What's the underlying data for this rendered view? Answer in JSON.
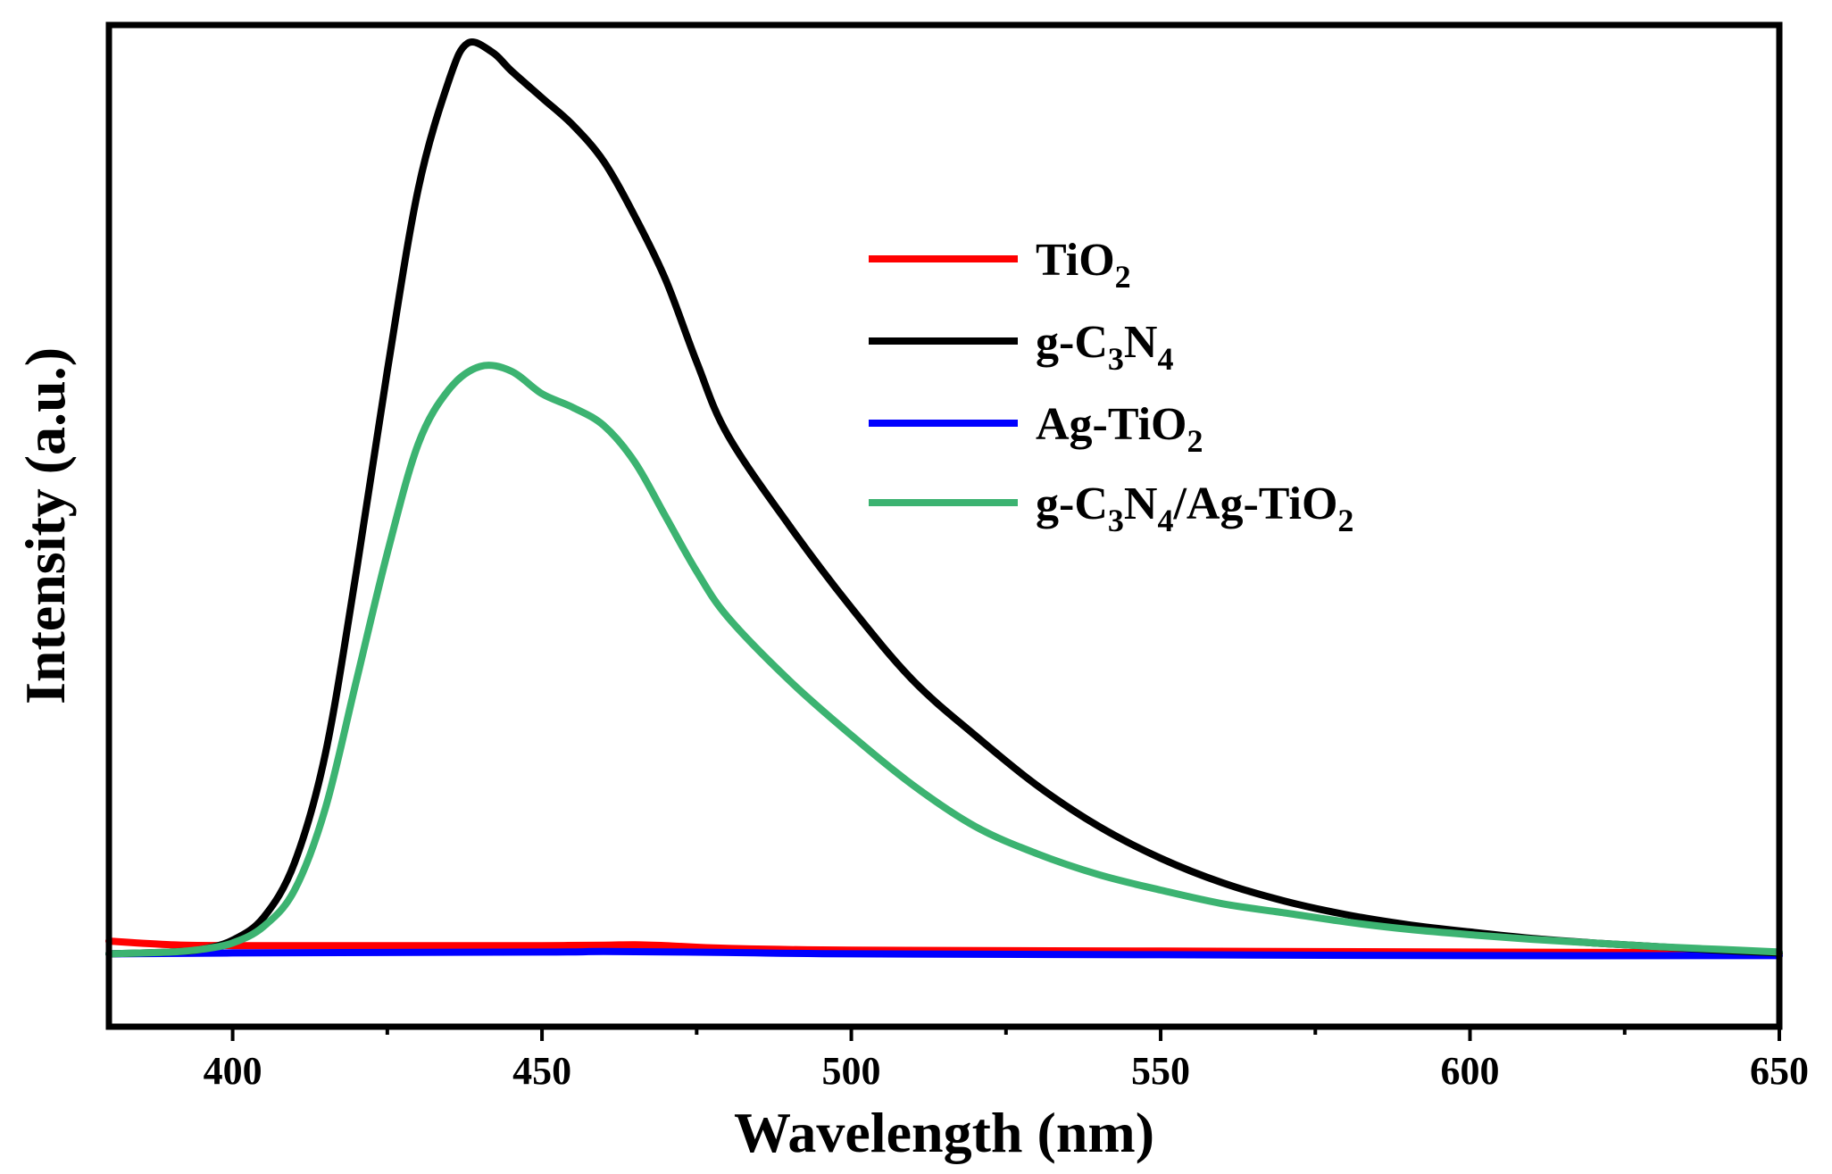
{
  "chart_data": {
    "type": "line",
    "title": "",
    "xlabel": "Wavelength (nm)",
    "ylabel": "Intensity (a.u.)",
    "xlim": [
      380,
      650
    ],
    "ylim": [
      -8,
      102
    ],
    "grid": false,
    "legend_position": "top-right (inside)",
    "x_ticks": [
      400,
      450,
      500,
      550,
      600,
      650
    ],
    "x_tick_labels": [
      "400",
      "450",
      "500",
      "550",
      "600",
      "650"
    ],
    "y_ticks_labeled": false,
    "series": [
      {
        "name": "TiO2",
        "legend": {
          "base": "TiO",
          "sub": "2"
        },
        "color": "#ff0000",
        "x": [
          380,
          390,
          400,
          420,
          440,
          450,
          460,
          465,
          470,
          480,
          500,
          550,
          600,
          650
        ],
        "y": [
          1.4,
          1.0,
          0.9,
          0.9,
          0.9,
          0.9,
          0.95,
          1.0,
          0.9,
          0.6,
          0.4,
          0.3,
          0.2,
          0.1
        ]
      },
      {
        "name": "g-C3N4",
        "legend": {
          "base": "g-C",
          "sub": "3",
          "base2": "N",
          "sub2": "4"
        },
        "color": "#000000",
        "x": [
          380,
          390,
          395,
          400,
          405,
          410,
          415,
          420,
          425,
          430,
          435,
          438,
          442,
          445,
          450,
          455,
          460,
          465,
          470,
          475,
          480,
          490,
          500,
          510,
          520,
          530,
          540,
          550,
          560,
          570,
          580,
          590,
          600,
          610,
          620,
          630,
          640,
          650
        ],
        "y": [
          0,
          0.2,
          0.5,
          1.5,
          4,
          10,
          22,
          42,
          64,
          84,
          96,
          100,
          99,
          97,
          94,
          91,
          87,
          81,
          74,
          65,
          57,
          47,
          38,
          30,
          24,
          18.5,
          14,
          10.5,
          7.8,
          5.8,
          4.3,
          3.2,
          2.4,
          1.7,
          1.2,
          0.8,
          0.4,
          0.1
        ]
      },
      {
        "name": "Ag-TiO2",
        "legend": {
          "base": "Ag-TiO",
          "sub": "2"
        },
        "color": "#0000ff",
        "x": [
          380,
          400,
          450,
          460,
          480,
          500,
          550,
          600,
          650
        ],
        "y": [
          0,
          0.1,
          0.2,
          0.25,
          0.15,
          0.0,
          -0.1,
          -0.2,
          -0.2
        ]
      },
      {
        "name": "g-C3N4/Ag-TiO2",
        "legend": {
          "base": "g-C",
          "sub": "3",
          "base2": "N",
          "sub2": "4",
          "base3": "/Ag-TiO",
          "sub3": "2"
        },
        "color": "#3cb371",
        "x": [
          380,
          390,
          395,
          400,
          405,
          410,
          415,
          420,
          425,
          430,
          435,
          440,
          445,
          450,
          455,
          460,
          465,
          470,
          475,
          480,
          490,
          500,
          510,
          520,
          530,
          540,
          550,
          560,
          570,
          580,
          590,
          600,
          610,
          620,
          630,
          640,
          650
        ],
        "y": [
          0,
          0.2,
          0.5,
          1.2,
          3,
          7,
          16,
          30,
          44,
          56,
          62,
          64.5,
          64,
          61.5,
          60,
          58,
          54,
          48,
          42,
          37,
          30,
          24,
          18.5,
          14,
          11,
          8.7,
          7,
          5.5,
          4.5,
          3.5,
          2.7,
          2.1,
          1.6,
          1.2,
          0.8,
          0.5,
          0.2
        ]
      }
    ]
  }
}
